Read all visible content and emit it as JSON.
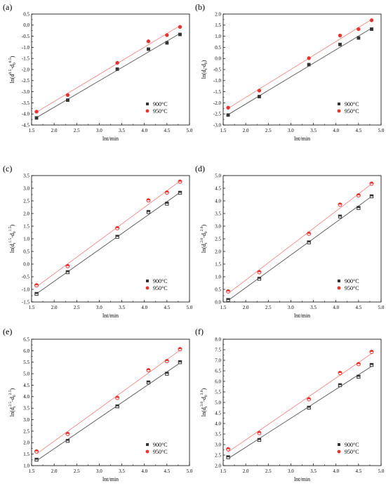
{
  "figure": {
    "panels": [
      {
        "panel_label": "(a)",
        "chart_data": {
          "type": "scatter",
          "xlabel": "lnt/min",
          "ylabel_main": "ln(d",
          "ylabel_sup1": "0.5",
          "ylabel_mid": "-d",
          "ylabel_sub": "0",
          "ylabel_sup2": "0.5",
          "ylabel_end": ")",
          "xlim": [
            1.5,
            5.0
          ],
          "ylim": [
            -4.5,
            0.5
          ],
          "xticks": [
            "1.5",
            "2.0",
            "2.5",
            "3.0",
            "3.5",
            "4.0",
            "4.5",
            "5.0"
          ],
          "yticks": [
            "-4.5",
            "-4.0",
            "-3.5",
            "-3.0",
            "-2.5",
            "-2.0",
            "-1.5",
            "-1.0",
            "-0.5",
            "0.0",
            "0.5"
          ],
          "grid": false,
          "legend_position": "bottom-right",
          "series": [
            {
              "name": "900°C",
              "color": "#333333",
              "fit_color": "#555555",
              "marker": "square",
              "x": [
                1.61,
                2.3,
                3.4,
                4.09,
                4.5,
                4.79
              ],
              "y": [
                -4.18,
                -3.38,
                -1.98,
                -1.08,
                -0.8,
                -0.42
              ]
            },
            {
              "name": "950°C",
              "color": "#e8332f",
              "fit_color": "#f08a86",
              "marker": "circle",
              "x": [
                1.61,
                2.3,
                3.4,
                4.09,
                4.5,
                4.79
              ],
              "y": [
                -3.9,
                -3.15,
                -1.7,
                -0.73,
                -0.45,
                -0.08
              ]
            }
          ]
        }
      },
      {
        "panel_label": "(b)",
        "chart_data": {
          "type": "scatter",
          "xlabel": "lnt/min",
          "ylabel_main": "ln(d",
          "ylabel_sup1": "",
          "ylabel_mid": "-d",
          "ylabel_sub": "0",
          "ylabel_sup2": "",
          "ylabel_end": ")",
          "ylabel_sub_first": "t",
          "xlim": [
            1.5,
            5.0
          ],
          "ylim": [
            -3.0,
            2.0
          ],
          "xticks": [
            "1.5",
            "2.0",
            "2.5",
            "3.0",
            "3.5",
            "4.0",
            "4.5",
            "5.0"
          ],
          "yticks": [
            "-3.0",
            "-2.5",
            "-2.0",
            "-1.5",
            "-1.0",
            "-0.5",
            "0.0",
            "0.5",
            "1.0",
            "1.5",
            "2.0"
          ],
          "grid": false,
          "legend_position": "bottom-right",
          "series": [
            {
              "name": "900°C",
              "color": "#333333",
              "fit_color": "#555555",
              "marker": "square",
              "x": [
                1.61,
                2.3,
                3.4,
                4.09,
                4.5,
                4.79
              ],
              "y": [
                -2.55,
                -1.72,
                -0.28,
                0.63,
                0.92,
                1.32
              ]
            },
            {
              "name": "950°C",
              "color": "#e8332f",
              "fit_color": "#f08a86",
              "marker": "circle",
              "x": [
                1.61,
                2.3,
                3.4,
                4.09,
                4.5,
                4.79
              ],
              "y": [
                -2.22,
                -1.45,
                0.01,
                1.03,
                1.32,
                1.72
              ]
            }
          ]
        }
      },
      {
        "panel_label": "(c)",
        "chart_data": {
          "type": "scatter",
          "xlabel": "lnt/min",
          "ylabel_main": "ln(d",
          "ylabel_sup1": "1.5",
          "ylabel_mid": "-d",
          "ylabel_sub": "0",
          "ylabel_sup2": "1.5",
          "ylabel_end": ")",
          "ylabel_sub_first": "t",
          "xlim": [
            1.5,
            5.0
          ],
          "ylim": [
            -1.5,
            3.5
          ],
          "xticks": [
            "1.5",
            "2.0",
            "2.5",
            "3.0",
            "3.5",
            "4.0",
            "4.5",
            "5.0"
          ],
          "yticks": [
            "-1.5",
            "-1.0",
            "-0.5",
            "0.0",
            "0.5",
            "1.0",
            "1.5",
            "2.0",
            "2.5",
            "3.0",
            "3.5"
          ],
          "grid": false,
          "legend_position": "bottom-right",
          "series": [
            {
              "name": "900°C",
              "color": "#333333",
              "fit_color": "#555555",
              "marker": "square-open",
              "x": [
                1.61,
                2.3,
                3.4,
                4.09,
                4.5,
                4.79
              ],
              "y": [
                -1.18,
                -0.32,
                1.08,
                2.06,
                2.39,
                2.82
              ]
            },
            {
              "name": "950°C",
              "color": "#e8332f",
              "fit_color": "#f08a86",
              "marker": "circle-open",
              "x": [
                1.61,
                2.3,
                3.4,
                4.09,
                4.5,
                4.79
              ],
              "y": [
                -0.84,
                -0.08,
                1.42,
                2.52,
                2.83,
                3.26
              ]
            }
          ]
        }
      },
      {
        "panel_label": "(d)",
        "chart_data": {
          "type": "scatter",
          "xlabel": "lnt/min",
          "ylabel_main": "ln(d",
          "ylabel_sup1": "2.0",
          "ylabel_mid": "-d",
          "ylabel_sub": "0",
          "ylabel_sup2": "2.0",
          "ylabel_end": ")",
          "ylabel_sub_first": "t",
          "xlim": [
            1.5,
            5.0
          ],
          "ylim": [
            0.0,
            5.0
          ],
          "xticks": [
            "1.5",
            "2.0",
            "2.5",
            "3.0",
            "3.5",
            "4.0",
            "4.5",
            "5.0"
          ],
          "yticks": [
            "0.0",
            "0.5",
            "1.0",
            "1.5",
            "2.0",
            "2.5",
            "3.0",
            "3.5",
            "4.0",
            "4.5",
            "5.0"
          ],
          "grid": false,
          "legend_position": "bottom-right",
          "series": [
            {
              "name": "900°C",
              "color": "#333333",
              "fit_color": "#555555",
              "marker": "square-open",
              "x": [
                1.61,
                2.3,
                3.4,
                4.09,
                4.5,
                4.79
              ],
              "y": [
                0.08,
                0.92,
                2.36,
                3.38,
                3.72,
                4.18
              ]
            },
            {
              "name": "950°C",
              "color": "#e8332f",
              "fit_color": "#f08a86",
              "marker": "circle-open",
              "x": [
                1.61,
                2.3,
                3.4,
                4.09,
                4.5,
                4.79
              ],
              "y": [
                0.42,
                1.18,
                2.7,
                3.85,
                4.22,
                4.68
              ]
            }
          ]
        }
      },
      {
        "panel_label": "(e)",
        "chart_data": {
          "type": "scatter",
          "xlabel": "lnt/min",
          "ylabel_main": "ln(d",
          "ylabel_sup1": "2.5",
          "ylabel_mid": "-d",
          "ylabel_sub": "0",
          "ylabel_sup2": "2.5",
          "ylabel_end": ")",
          "ylabel_sub_first": "t",
          "xlim": [
            1.5,
            5.0
          ],
          "ylim": [
            1.0,
            6.5
          ],
          "xticks": [
            "1.5",
            "2.0",
            "2.5",
            "3.0",
            "3.5",
            "4.0",
            "4.5",
            "5.0"
          ],
          "yticks": [
            "1.0",
            "1.5",
            "2.0",
            "2.5",
            "3.0",
            "3.5",
            "4.0",
            "4.5",
            "5.0",
            "5.5",
            "6.0",
            "6.5"
          ],
          "grid": false,
          "legend_position": "bottom-right",
          "series": [
            {
              "name": "900°C",
              "color": "#333333",
              "fit_color": "#555555",
              "marker": "square-open",
              "x": [
                1.61,
                2.3,
                3.4,
                4.09,
                4.5,
                4.79
              ],
              "y": [
                1.26,
                2.08,
                3.58,
                4.62,
                5.0,
                5.5
              ]
            },
            {
              "name": "950°C",
              "color": "#e8332f",
              "fit_color": "#f08a86",
              "marker": "circle-open",
              "x": [
                1.61,
                2.3,
                3.4,
                4.09,
                4.5,
                4.79
              ],
              "y": [
                1.62,
                2.38,
                3.95,
                5.15,
                5.55,
                6.07
              ]
            }
          ]
        }
      },
      {
        "panel_label": "(f)",
        "chart_data": {
          "type": "scatter",
          "xlabel": "lnt/min",
          "ylabel_main": "ln(d",
          "ylabel_sup1": "3.0",
          "ylabel_mid": "-d",
          "ylabel_sub": "0",
          "ylabel_sup2": "3.0",
          "ylabel_end": ")",
          "ylabel_sub_first": "t",
          "xlim": [
            1.5,
            5.0
          ],
          "ylim": [
            2.0,
            8.0
          ],
          "xticks": [
            "1.5",
            "2.0",
            "2.5",
            "3.0",
            "3.5",
            "4.0",
            "4.5",
            "5.0"
          ],
          "yticks": [
            "2.0",
            "2.5",
            "3.0",
            "3.5",
            "4.0",
            "4.5",
            "5.0",
            "5.5",
            "6.0",
            "6.5",
            "7.0",
            "7.5",
            "8.0"
          ],
          "grid": false,
          "legend_position": "bottom-right",
          "series": [
            {
              "name": "900°C",
              "color": "#333333",
              "fit_color": "#555555",
              "marker": "square-open",
              "x": [
                1.61,
                2.3,
                3.4,
                4.09,
                4.5,
                4.79
              ],
              "y": [
                2.4,
                3.22,
                4.75,
                5.82,
                6.22,
                6.78
              ]
            },
            {
              "name": "950°C",
              "color": "#e8332f",
              "fit_color": "#f08a86",
              "marker": "circle-open",
              "x": [
                1.61,
                2.3,
                3.4,
                4.09,
                4.5,
                4.79
              ],
              "y": [
                2.78,
                3.55,
                5.15,
                6.4,
                6.82,
                7.4
              ]
            }
          ]
        }
      }
    ]
  }
}
